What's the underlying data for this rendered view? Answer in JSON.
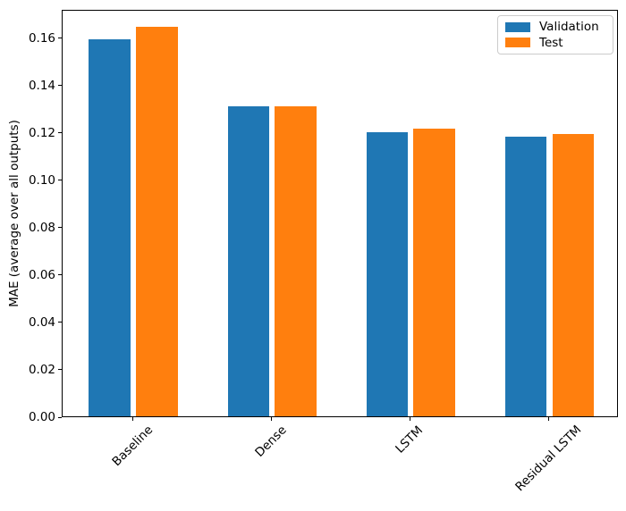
{
  "window": {
    "background_color": "#ffffff"
  },
  "chart_data": {
    "type": "bar",
    "title": "",
    "xlabel": "",
    "ylabel": "MAE (average over all outputs)",
    "categories": [
      "Baseline",
      "Dense",
      "LSTM",
      "Residual LSTM"
    ],
    "series": [
      {
        "name": "Validation",
        "color": "#1f77b4",
        "values": [
          0.159,
          0.1308,
          0.12,
          0.1181
        ]
      },
      {
        "name": "Test",
        "color": "#ff7f0e",
        "values": [
          0.1645,
          0.1308,
          0.1214,
          0.1192
        ]
      }
    ],
    "ylim": [
      0,
      0.172
    ],
    "xlim": [
      -0.51,
      3.5
    ],
    "yticks": [
      0.0,
      0.02,
      0.04,
      0.06,
      0.08,
      0.1,
      0.12,
      0.14,
      0.16
    ],
    "ytick_format_decimals": 2,
    "bar_width": 0.3,
    "bar_offset": 0.17,
    "xtick_rotation_deg": 45,
    "grid": false,
    "legend": {
      "position": "upper right",
      "entries": [
        "Validation",
        "Test"
      ],
      "border_color": "#cccccc",
      "background_color": "#ffffff"
    },
    "axis_color": "#000000",
    "text_color": "#000000"
  }
}
